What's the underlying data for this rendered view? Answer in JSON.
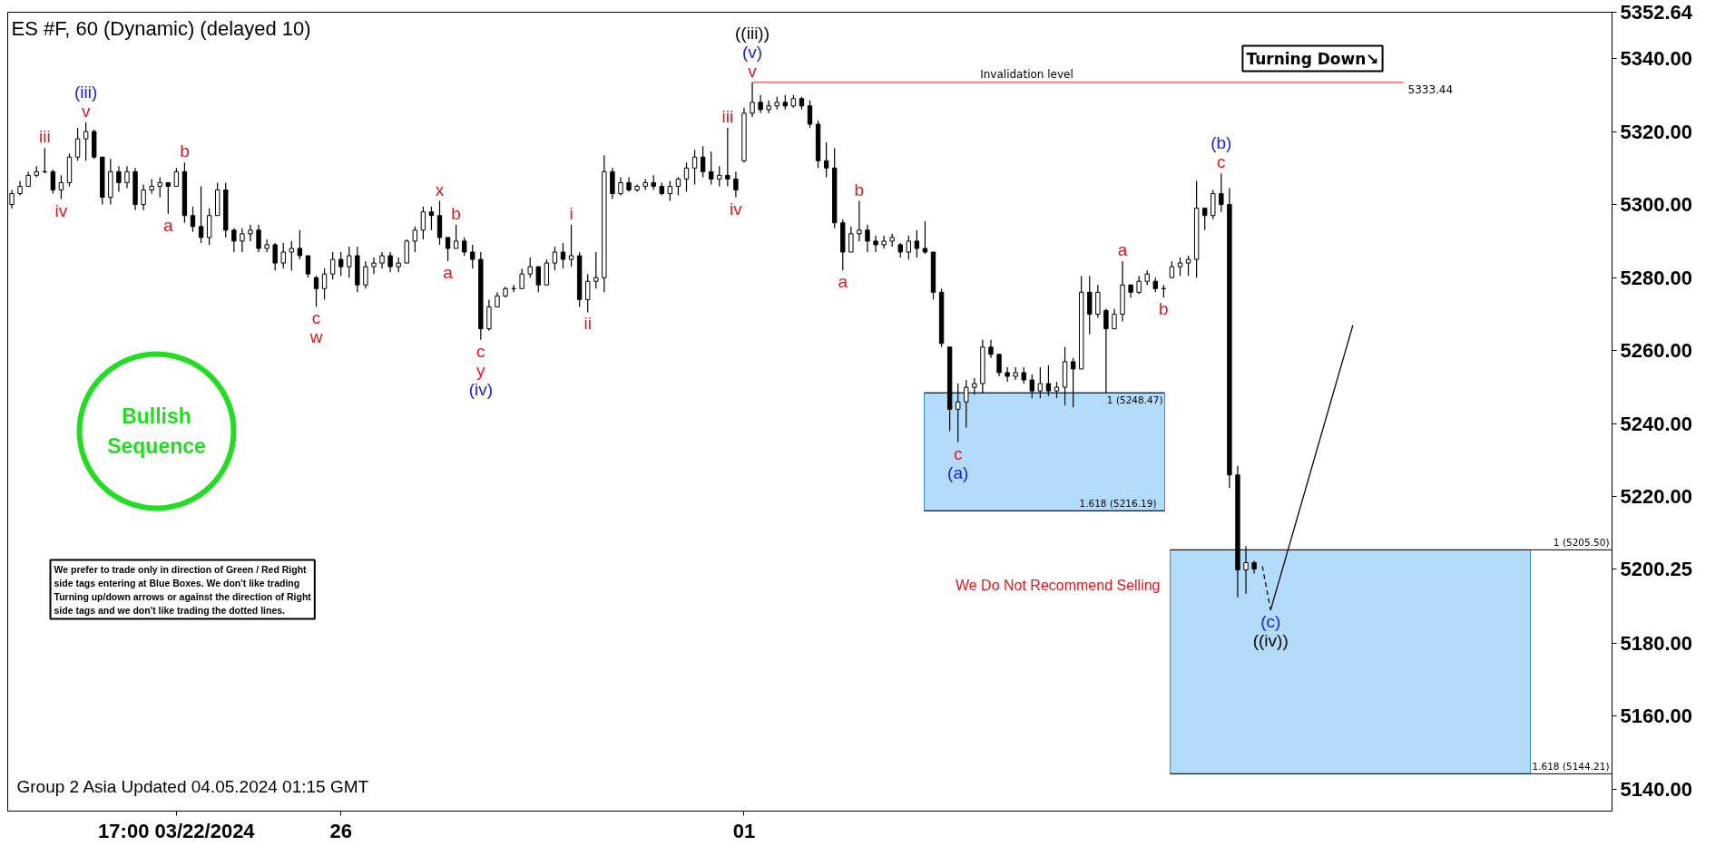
{
  "chart_data": {
    "type": "candlestick",
    "title": "ES #F, 60 (Dynamic) (delayed 10)",
    "categories": [
      null,
      null,
      null,
      null,
      null,
      null,
      null,
      null,
      null,
      null,
      null,
      null,
      null,
      null,
      null,
      null,
      null,
      null,
      null,
      null,
      "17:00 03/22/2024",
      null,
      null,
      null,
      null,
      null,
      null,
      null,
      null,
      null,
      null,
      null,
      null,
      null,
      null,
      null,
      null,
      null,
      null,
      null,
      "26",
      null,
      null,
      null,
      null,
      null,
      null,
      null,
      null,
      null,
      null,
      null,
      null,
      null,
      null,
      null,
      null,
      null,
      null,
      null,
      null,
      null,
      null,
      null,
      null,
      null,
      null,
      null,
      null,
      null,
      null,
      null,
      null,
      null,
      null,
      null,
      null,
      null,
      null,
      null,
      null,
      null,
      null,
      null,
      null,
      null,
      null,
      null,
      null,
      "01",
      null,
      null,
      null,
      null,
      null,
      null,
      null,
      null,
      null,
      null,
      null,
      null,
      null,
      null,
      null,
      null,
      null,
      null,
      null,
      null,
      null,
      null,
      null,
      null,
      null,
      null,
      null,
      null,
      null,
      null,
      null,
      null,
      null,
      null,
      null,
      null,
      null,
      null,
      null,
      null,
      null,
      null,
      null,
      null,
      null,
      null,
      null,
      null,
      null,
      null,
      null,
      null,
      null,
      null,
      null,
      null,
      null,
      null,
      null,
      null,
      null,
      null,
      null,
      null,
      null,
      null,
      null,
      null,
      null,
      null,
      null,
      null,
      null,
      null,
      null,
      null,
      null,
      null,
      null,
      null,
      null,
      null,
      null,
      null,
      null,
      null,
      null,
      null,
      null,
      null,
      null,
      null,
      null,
      null,
      null,
      null,
      null,
      null,
      null,
      null,
      null,
      null,
      null,
      null,
      null
    ],
    "ohlc": [
      [
        5300,
        5304,
        5299,
        5303
      ],
      [
        5303,
        5306.5,
        5302.5,
        5305
      ],
      [
        5305,
        5309,
        5305,
        5308
      ],
      [
        5308,
        5310.5,
        5307.5,
        5309
      ],
      [
        5309,
        5315.5,
        5308.5,
        5309
      ],
      [
        5309,
        5309.5,
        5303,
        5304
      ],
      [
        5304,
        5308,
        5301.5,
        5306
      ],
      [
        5306,
        5314,
        5305,
        5313
      ],
      [
        5313,
        5321,
        5312,
        5318
      ],
      [
        5318,
        5322.5,
        5312,
        5320
      ],
      [
        5320,
        5320.5,
        5312.5,
        5313
      ],
      [
        5313,
        5313,
        5300,
        5302
      ],
      [
        5302,
        5312.5,
        5300,
        5309
      ],
      [
        5309,
        5310.5,
        5303.5,
        5306
      ],
      [
        5306,
        5310.5,
        5304.5,
        5309
      ],
      [
        5309,
        5310,
        5298.5,
        5300
      ],
      [
        5300,
        5305.5,
        5298.5,
        5304
      ],
      [
        5304,
        5307,
        5303,
        5305
      ],
      [
        5305,
        5307.5,
        5302,
        5306
      ],
      [
        5306,
        5306,
        5297.5,
        5305
      ],
      [
        5305,
        5310,
        5305,
        5309
      ],
      [
        5309,
        5311.5,
        5295,
        5297
      ],
      [
        5297,
        5299.5,
        5292.5,
        5294
      ],
      [
        5294,
        5305,
        5289.5,
        5291
      ],
      [
        5291,
        5299,
        5289,
        5297
      ],
      [
        5297,
        5306,
        5297,
        5304
      ],
      [
        5304,
        5306,
        5291,
        5293
      ],
      [
        5293,
        5293.5,
        5287,
        5290
      ],
      [
        5290,
        5293.5,
        5287,
        5292
      ],
      [
        5292,
        5294.5,
        5290,
        5293
      ],
      [
        5293,
        5294.5,
        5287,
        5288
      ],
      [
        5288,
        5290.5,
        5287,
        5289
      ],
      [
        5289,
        5289.5,
        5282,
        5284
      ],
      [
        5284,
        5289.5,
        5282.5,
        5287
      ],
      [
        5287,
        5290,
        5282,
        5288
      ],
      [
        5288,
        5293,
        5285,
        5286
      ],
      [
        5286,
        5286,
        5280,
        5281
      ],
      [
        5280,
        5280.5,
        5272,
        5277
      ],
      [
        5277,
        5282.5,
        5274,
        5281
      ],
      [
        5281,
        5287,
        5279.5,
        5285
      ],
      [
        5285,
        5287,
        5280.5,
        5283
      ],
      [
        5283,
        5288.5,
        5280,
        5286
      ],
      [
        5286,
        5288.5,
        5276,
        5278
      ],
      [
        5278,
        5284.5,
        5277,
        5283
      ],
      [
        5283,
        5285.5,
        5281,
        5284
      ],
      [
        5284,
        5287,
        5282.5,
        5286
      ],
      [
        5286,
        5287,
        5281.5,
        5283
      ],
      [
        5283,
        5285.5,
        5281.5,
        5284
      ],
      [
        5284,
        5290.5,
        5284,
        5290
      ],
      [
        5290,
        5294,
        5287,
        5293
      ],
      [
        5293,
        5299.5,
        5290.5,
        5298
      ],
      [
        5298,
        5299.5,
        5293,
        5297
      ],
      [
        5297,
        5301,
        5289,
        5291
      ],
      [
        5291,
        5291,
        5284.5,
        5288
      ],
      [
        5288,
        5294.5,
        5288,
        5290
      ],
      [
        5290,
        5291,
        5286,
        5287
      ],
      [
        5287,
        5289,
        5282.5,
        5285
      ],
      [
        5285,
        5287,
        5263,
        5266
      ],
      [
        5266,
        5274,
        5265.5,
        5272
      ],
      [
        5272,
        5276,
        5272,
        5275
      ],
      [
        5275,
        5277.5,
        5274.5,
        5277
      ],
      [
        5277,
        5278,
        5276,
        5277
      ],
      [
        5277,
        5282.5,
        5277,
        5281
      ],
      [
        5281,
        5285.5,
        5280,
        5283
      ],
      [
        5283,
        5283,
        5276,
        5278
      ],
      [
        5278,
        5285,
        5278,
        5284
      ],
      [
        5284,
        5288.5,
        5282,
        5287
      ],
      [
        5287,
        5289.5,
        5282.5,
        5285
      ],
      [
        5285,
        5294.5,
        5283,
        5286
      ],
      [
        5286,
        5287,
        5272,
        5274
      ],
      [
        5274,
        5281,
        5270.5,
        5279
      ],
      [
        5279,
        5287,
        5277,
        5280
      ],
      [
        5280,
        5313.5,
        5276,
        5309
      ],
      [
        5309,
        5310,
        5301.5,
        5303
      ],
      [
        5303,
        5307.5,
        5302.5,
        5306
      ],
      [
        5306,
        5307.5,
        5303.5,
        5304
      ],
      [
        5304,
        5305.5,
        5303.5,
        5305
      ],
      [
        5305,
        5307,
        5304,
        5306
      ],
      [
        5306,
        5308,
        5304,
        5305
      ],
      [
        5305,
        5306,
        5302.5,
        5303
      ],
      [
        5303,
        5306.5,
        5301,
        5305
      ],
      [
        5305,
        5307.5,
        5302.5,
        5307
      ],
      [
        5307,
        5311.5,
        5303.5,
        5310
      ],
      [
        5310,
        5315,
        5305.5,
        5313
      ],
      [
        5313,
        5316,
        5307.5,
        5309
      ],
      [
        5309,
        5314.5,
        5305.5,
        5307
      ],
      [
        5307,
        5310.5,
        5305,
        5308
      ],
      [
        5308,
        5321,
        5305,
        5307
      ],
      [
        5307,
        5309,
        5302,
        5304
      ],
      [
        5312,
        5326.5,
        5311.5,
        5325
      ],
      [
        5325,
        5333.44,
        5324,
        5328
      ],
      [
        5328,
        5330,
        5325,
        5326
      ],
      [
        5326,
        5328.5,
        5325,
        5327
      ],
      [
        5327,
        5329.5,
        5326,
        5328
      ],
      [
        5328,
        5330,
        5326,
        5327
      ],
      [
        5327,
        5330,
        5326.5,
        5329
      ],
      [
        5329,
        5329.5,
        5326,
        5327
      ],
      [
        5327,
        5328.5,
        5321,
        5322
      ],
      [
        5322,
        5323,
        5310,
        5312
      ],
      [
        5312,
        5317,
        5307.5,
        5310
      ],
      [
        5310,
        5315.5,
        5293.5,
        5295
      ],
      [
        5295,
        5296,
        5282,
        5287
      ],
      [
        5287,
        5294,
        5287,
        5292
      ],
      [
        5292,
        5301,
        5290,
        5293
      ],
      [
        5293,
        5294.5,
        5287,
        5290
      ],
      [
        5290,
        5291.5,
        5287,
        5289
      ],
      [
        5289,
        5291.5,
        5288,
        5290
      ],
      [
        5290,
        5292,
        5288.5,
        5291
      ],
      [
        5289,
        5289.5,
        5285.5,
        5287
      ],
      [
        5287,
        5291.5,
        5285,
        5290
      ],
      [
        5290,
        5293,
        5285.5,
        5288
      ],
      [
        5288,
        5295.5,
        5286.5,
        5287
      ],
      [
        5287,
        5287,
        5274,
        5276
      ],
      [
        5276,
        5277,
        5261,
        5262
      ],
      [
        5261,
        5261,
        5238,
        5244
      ],
      [
        5244,
        5251,
        5235,
        5246
      ],
      [
        5246,
        5252,
        5239,
        5250
      ],
      [
        5250,
        5252.5,
        5248,
        5251
      ],
      [
        5251,
        5263,
        5248.5,
        5261
      ],
      [
        5261,
        5263,
        5258,
        5259
      ],
      [
        5259,
        5259,
        5253,
        5254
      ],
      [
        5254,
        5255.5,
        5251.5,
        5253
      ],
      [
        5253,
        5255.5,
        5252,
        5254
      ],
      [
        5254,
        5255.5,
        5251,
        5252
      ],
      [
        5252,
        5253.5,
        5247,
        5249
      ],
      [
        5249,
        5255.5,
        5247,
        5251
      ],
      [
        5251,
        5256,
        5247.5,
        5249
      ],
      [
        5249,
        5251.5,
        5247,
        5250
      ],
      [
        5250,
        5261,
        5245,
        5257
      ],
      [
        5257,
        5258,
        5244.5,
        5255
      ],
      [
        5255,
        5280.5,
        5255,
        5276
      ],
      [
        5276,
        5280.5,
        5264.5,
        5270
      ],
      [
        5270,
        5278,
        5269,
        5276
      ],
      [
        5271,
        5271.5,
        5248.5,
        5266
      ],
      [
        5266,
        5271.5,
        5266,
        5270
      ],
      [
        5270,
        5284.5,
        5268,
        5278
      ],
      [
        5278,
        5278,
        5274.5,
        5276
      ],
      [
        5276,
        5280.5,
        5275.5,
        5279
      ],
      [
        5279,
        5282,
        5278,
        5281
      ],
      [
        5279,
        5280,
        5276,
        5277
      ],
      [
        5277,
        5278,
        5274.5,
        5277
      ],
      [
        5280,
        5284.5,
        5280,
        5283
      ],
      [
        5283,
        5285.5,
        5280.5,
        5284
      ],
      [
        5284,
        5286,
        5280.5,
        5285
      ],
      [
        5285,
        5306.5,
        5280,
        5299
      ],
      [
        5299,
        5299,
        5293,
        5297
      ],
      [
        5297,
        5304,
        5296,
        5303
      ],
      [
        5303,
        5308.5,
        5298,
        5300
      ],
      [
        5300,
        5304.5,
        5222.5,
        5226
      ],
      [
        5226,
        5228.5,
        5192.5,
        5200
      ],
      [
        5200,
        5206.5,
        5193.5,
        5202
      ],
      [
        5202,
        5202.5,
        5199,
        5200.25
      ],
      null,
      null,
      null,
      null,
      null,
      null,
      null,
      null,
      null,
      null,
      null,
      null,
      null,
      null,
      null,
      null,
      null,
      null,
      null,
      null,
      null,
      null,
      null,
      null,
      null,
      null,
      null,
      null,
      null,
      null,
      null,
      null,
      null,
      null,
      null,
      null,
      null,
      null,
      null,
      null,
      null,
      null,
      null
    ],
    "value_labels": [
      null,
      null,
      null,
      null,
      "iii",
      null,
      "iv",
      null,
      null,
      "(iii)\nv",
      null,
      null,
      null,
      null,
      null,
      null,
      null,
      null,
      null,
      "a",
      null,
      "b",
      null,
      null,
      null,
      null,
      null,
      null,
      null,
      null,
      null,
      null,
      null,
      null,
      null,
      null,
      null,
      "c\nw",
      null,
      null,
      null,
      null,
      null,
      null,
      null,
      null,
      null,
      null,
      null,
      null,
      null,
      null,
      "x",
      "a",
      "b",
      null,
      null,
      "c\ny\n(iv)",
      null,
      null,
      null,
      null,
      null,
      null,
      null,
      null,
      null,
      null,
      "i",
      null,
      "ii",
      null,
      null,
      null,
      null,
      null,
      null,
      null,
      null,
      null,
      null,
      null,
      null,
      null,
      null,
      null,
      null,
      "iii",
      "iv",
      null,
      "((iii))\n(v)\nv",
      null,
      null,
      null,
      null,
      null,
      null,
      null,
      null,
      null,
      null,
      "a",
      null,
      "b",
      null,
      null,
      null,
      null,
      null,
      null,
      null,
      null,
      null,
      null,
      null,
      "c\n(a)",
      null,
      null,
      null,
      null,
      null,
      null,
      null,
      null,
      null,
      null,
      null,
      null,
      null,
      null,
      null,
      null,
      null,
      null,
      null,
      "a",
      null,
      null,
      null,
      null,
      "b",
      null,
      null,
      null,
      null,
      null,
      null,
      "(b)\nc",
      null,
      null,
      null,
      null,
      null,
      null,
      null,
      null,
      null,
      null,
      null,
      null,
      null,
      null,
      null,
      null,
      null,
      null,
      null,
      null,
      null,
      null,
      null,
      null,
      null,
      null,
      null,
      null,
      null,
      null,
      null,
      null,
      null,
      null,
      null,
      null,
      null,
      null,
      null,
      null,
      null,
      null,
      null,
      null,
      null,
      null,
      null
    ],
    "series": [
      {
        "type": "line",
        "color": "#000000",
        "line_style": "dashed",
        "values": [
          null,
          null,
          null,
          null,
          null,
          null,
          null,
          null,
          null,
          null,
          null,
          null,
          null,
          null,
          null,
          null,
          null,
          null,
          null,
          null,
          null,
          null,
          null,
          null,
          null,
          null,
          null,
          null,
          null,
          null,
          null,
          null,
          null,
          null,
          null,
          null,
          null,
          null,
          null,
          null,
          null,
          null,
          null,
          null,
          null,
          null,
          null,
          null,
          null,
          null,
          null,
          null,
          null,
          null,
          null,
          null,
          null,
          null,
          null,
          null,
          null,
          null,
          null,
          null,
          null,
          null,
          null,
          null,
          null,
          null,
          null,
          null,
          null,
          null,
          null,
          null,
          null,
          null,
          null,
          null,
          null,
          null,
          null,
          null,
          null,
          null,
          null,
          null,
          null,
          null,
          null,
          null,
          null,
          null,
          null,
          null,
          null,
          null,
          null,
          null,
          null,
          null,
          null,
          null,
          null,
          null,
          null,
          null,
          null,
          null,
          null,
          null,
          null,
          null,
          null,
          null,
          null,
          null,
          null,
          null,
          null,
          null,
          null,
          null,
          null,
          null,
          null,
          null,
          null,
          null,
          null,
          null,
          null,
          null,
          null,
          null,
          null,
          null,
          null,
          null,
          null,
          null,
          null,
          null,
          null,
          null,
          null,
          null,
          null,
          null,
          null,
          null,
          5201,
          5189,
          null,
          null,
          null,
          null,
          null,
          null,
          null,
          null,
          null,
          null,
          null,
          null,
          null,
          null,
          null,
          null,
          null,
          null,
          null,
          null,
          null,
          null,
          null,
          null,
          null,
          null,
          null,
          null,
          null,
          null,
          null,
          null,
          null,
          null,
          null,
          null,
          null,
          null,
          null,
          null,
          null
        ],
        "value_labels": [
          null,
          null,
          null,
          null,
          null,
          null,
          null,
          null,
          null,
          null,
          null,
          null,
          null,
          null,
          null,
          null,
          null,
          null,
          null,
          null,
          null,
          null,
          null,
          null,
          null,
          null,
          null,
          null,
          null,
          null,
          null,
          null,
          null,
          null,
          null,
          null,
          null,
          null,
          null,
          null,
          null,
          null,
          null,
          null,
          null,
          null,
          null,
          null,
          null,
          null,
          null,
          null,
          null,
          null,
          null,
          null,
          null,
          null,
          null,
          null,
          null,
          null,
          null,
          null,
          null,
          null,
          null,
          null,
          null,
          null,
          null,
          null,
          null,
          null,
          null,
          null,
          null,
          null,
          null,
          null,
          null,
          null,
          null,
          null,
          null,
          null,
          null,
          null,
          null,
          null,
          null,
          null,
          null,
          null,
          null,
          null,
          null,
          null,
          null,
          null,
          null,
          null,
          null,
          null,
          null,
          null,
          null,
          null,
          null,
          null,
          null,
          null,
          null,
          null,
          null,
          null,
          null,
          null,
          null,
          null,
          null,
          null,
          null,
          null,
          null,
          null,
          null,
          null,
          null,
          null,
          null,
          null,
          null,
          null,
          null,
          null,
          null,
          null,
          null,
          null,
          null,
          null,
          null,
          null,
          null,
          null,
          null,
          null,
          null,
          null,
          null,
          null,
          null,
          "(c)\n((iv))",
          null,
          null,
          null,
          null,
          null,
          null,
          null,
          null,
          null,
          null,
          null,
          null,
          null,
          null,
          null,
          null,
          null,
          null,
          null,
          null,
          null,
          null,
          null,
          null,
          null,
          null,
          null,
          null,
          null,
          null,
          null,
          null,
          null,
          null,
          null,
          null,
          null,
          null,
          null,
          null,
          null
        ]
      },
      {
        "type": "line",
        "color": "#000000",
        "line_style": "solid",
        "values": [
          null,
          null,
          null,
          null,
          null,
          null,
          null,
          null,
          null,
          null,
          null,
          null,
          null,
          null,
          null,
          null,
          null,
          null,
          null,
          null,
          null,
          null,
          null,
          null,
          null,
          null,
          null,
          null,
          null,
          null,
          null,
          null,
          null,
          null,
          null,
          null,
          null,
          null,
          null,
          null,
          null,
          null,
          null,
          null,
          null,
          null,
          null,
          null,
          null,
          null,
          null,
          null,
          null,
          null,
          null,
          null,
          null,
          null,
          null,
          null,
          null,
          null,
          null,
          null,
          null,
          null,
          null,
          null,
          null,
          null,
          null,
          null,
          null,
          null,
          null,
          null,
          null,
          null,
          null,
          null,
          null,
          null,
          null,
          null,
          null,
          null,
          null,
          null,
          null,
          null,
          null,
          null,
          null,
          null,
          null,
          null,
          null,
          null,
          null,
          null,
          null,
          null,
          null,
          null,
          null,
          null,
          null,
          null,
          null,
          null,
          null,
          null,
          null,
          null,
          null,
          null,
          null,
          null,
          null,
          null,
          null,
          null,
          null,
          null,
          null,
          null,
          null,
          null,
          null,
          null,
          null,
          null,
          null,
          null,
          null,
          null,
          null,
          null,
          null,
          null,
          null,
          null,
          null,
          null,
          null,
          null,
          null,
          null,
          null,
          null,
          null,
          null,
          null,
          5189,
          null,
          null,
          null,
          null,
          null,
          null,
          null,
          null,
          null,
          5267,
          null,
          null,
          null,
          null,
          null,
          null,
          null,
          null,
          null,
          null,
          null,
          null,
          null,
          null,
          null,
          null,
          null,
          null,
          null,
          null,
          null,
          null,
          null,
          null,
          null,
          null,
          null,
          null,
          null,
          null,
          null
        ]
      }
    ],
    "ylim": [
      5134,
      5352.64
    ],
    "yticks": [
      {
        "value": 5140,
        "label": "5140.00"
      },
      {
        "value": 5160,
        "label": "5160.00"
      },
      {
        "value": 5180,
        "label": "5180.00"
      },
      {
        "value": 5200.25,
        "label": "5200.25"
      },
      {
        "value": 5220,
        "label": "5220.00"
      },
      {
        "value": 5240,
        "label": "5240.00"
      },
      {
        "value": 5260,
        "label": "5260.00"
      },
      {
        "value": 5280,
        "label": "5280.00"
      },
      {
        "value": 5300,
        "label": "5300.00"
      },
      {
        "value": 5320,
        "label": "5320.00"
      },
      {
        "value": 5340,
        "label": "5340.00"
      },
      {
        "value": 5352.64,
        "label": "5352.64"
      }
    ],
    "grid": false,
    "bands": [
      {
        "axis": "y",
        "from": 5216.19,
        "to": 5248.47,
        "color": "#b3dcfb"
      },
      {
        "axis": "y",
        "from": 5144.21,
        "to": 5205.5,
        "color": "#b3dcfb"
      }
    ],
    "ref_lines": [
      {
        "axis": "y",
        "value": 5333.44,
        "label": "Invalidation level",
        "color": "#e02020"
      },
      {
        "axis": "y",
        "value": 5248.47,
        "label": "1 (5248.47)",
        "color": "#000000"
      },
      {
        "axis": "y",
        "value": 5216.19,
        "label": "1.618 (5216.19)",
        "color": "#000000"
      },
      {
        "axis": "y",
        "value": 5205.5,
        "label": "1 (5205.50)",
        "color": "#000000"
      },
      {
        "axis": "y",
        "value": 5144.21,
        "label": "1.618 (5144.21)",
        "color": "#000000"
      }
    ],
    "annotations": [
      "Bullish Sequence",
      "We prefer to trade only in direction of Green / Red Right side tags entering at Blue Boxes. We don't like trading Turning up/down arrows or against the direction of Right side tags and we don't like trading the dotted lines.",
      "We Do Not Recommend Selling",
      "Turning Down↘",
      "Group 2 Asia Updated 04.05.2024 01:15 GMT",
      "5333.44"
    ]
  }
}
